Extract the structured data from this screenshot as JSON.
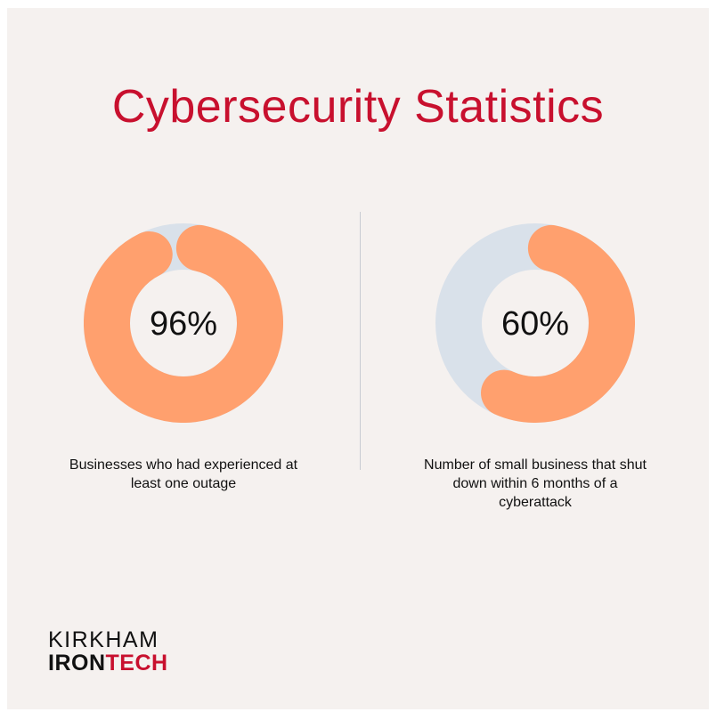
{
  "title": "Cybersecurity Statistics",
  "colors": {
    "title": "#c8102e",
    "background": "#f5f1ef",
    "ring_value": "#ffa06e",
    "ring_track": "#d9e1ea",
    "logo_accent": "#c8102e"
  },
  "chart_data": [
    {
      "type": "pie",
      "style": "donut",
      "value": 96,
      "unit": "%",
      "value_label": "96%",
      "caption": "Businesses who had experienced at least one outage"
    },
    {
      "type": "pie",
      "style": "donut",
      "value": 60,
      "unit": "%",
      "value_label": "60%",
      "caption": "Number of small business that shut down within 6 months of a cyberattack"
    }
  ],
  "logo": {
    "line1": "KIRKHAM",
    "line2_part1": "IRON",
    "line2_part2": "TECH"
  }
}
